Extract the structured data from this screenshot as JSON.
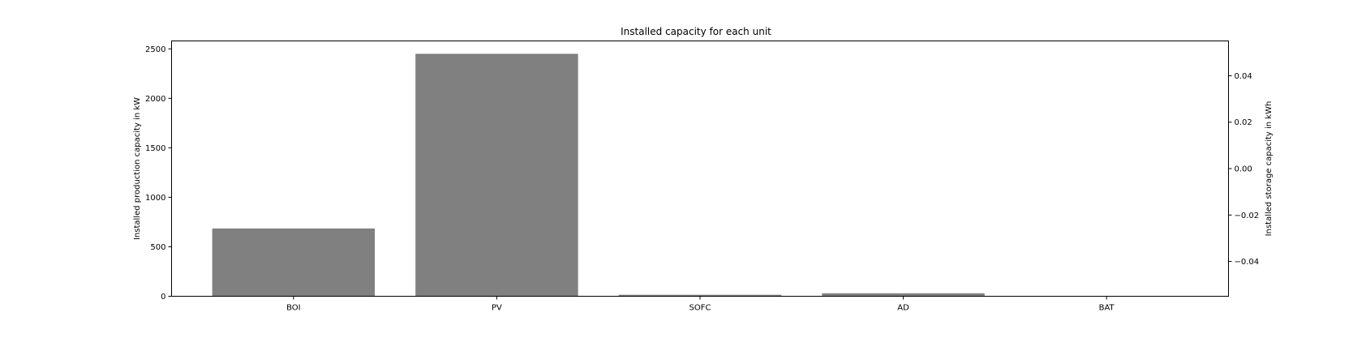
{
  "chart_data": {
    "type": "bar",
    "title": "Installed capacity for each unit",
    "categories": [
      "BOI",
      "PV",
      "SOFC",
      "AD",
      "BAT"
    ],
    "series": [
      {
        "axis": "left",
        "values": [
          685,
          2450,
          15,
          30,
          0
        ]
      }
    ],
    "ylabel": "Installed production capacity in kW",
    "ylim": [
      0,
      2580
    ],
    "yticks": [
      0,
      500,
      1000,
      1500,
      2000,
      2500
    ],
    "ytick_labels": [
      "0",
      "500",
      "1000",
      "1500",
      "2000",
      "2500"
    ],
    "y2label": "Installed storage capacity in kWh",
    "y2lim": [
      -0.055,
      0.055
    ],
    "y2ticks": [
      -0.04,
      -0.02,
      0.0,
      0.02,
      0.04
    ],
    "y2tick_labels": [
      "−0.04",
      "−0.02",
      "0.00",
      "0.02",
      "0.04"
    ],
    "bar_color": "#808080",
    "grid": false,
    "legend": false
  }
}
